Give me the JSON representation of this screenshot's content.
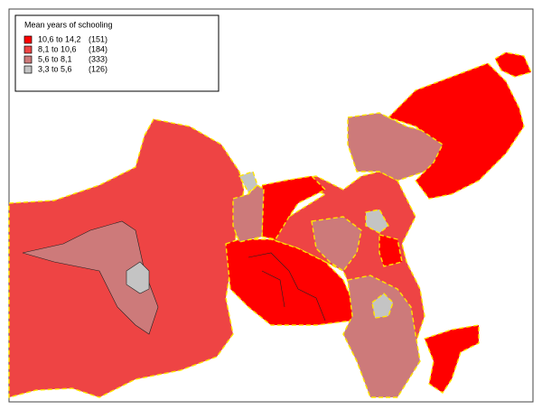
{
  "legend": {
    "title": "Mean years of schooling",
    "items": [
      {
        "range": "10,6 to 14,2",
        "count": "(151)",
        "color": "#ff0000"
      },
      {
        "range": "8,1 to 10,6",
        "count": "(184)",
        "color": "#ee4444"
      },
      {
        "range": "5,6 to   8,1",
        "count": "(333)",
        "color": "#cd7a7a"
      },
      {
        "range": "3,3 to   5,6",
        "count": "(126)",
        "color": "#c4c4c4"
      }
    ]
  }
}
